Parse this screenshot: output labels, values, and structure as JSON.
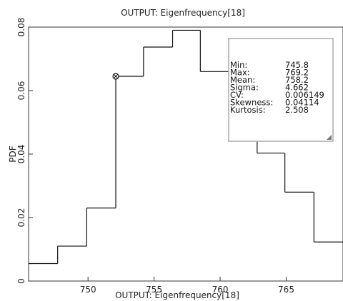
{
  "chart_data": {
    "type": "histogram-step",
    "title": "OUTPUT: Eigenfrequency[18]",
    "xlabel": "OUTPUT: Eigenfrequency[18]",
    "ylabel": "PDF",
    "xlim": [
      745.5,
      769.3
    ],
    "ylim": [
      0,
      0.08
    ],
    "x_ticks": [
      750,
      755,
      760,
      765
    ],
    "y_ticks": [
      0,
      0.02,
      0.04,
      0.06,
      0.08
    ],
    "y_tick_labels": [
      "0",
      "0.02",
      "0.04",
      "0.06",
      "0.08"
    ],
    "grid": false,
    "bins": [
      {
        "x0": 745.5,
        "x1": 747.7,
        "pdf": 0.0055
      },
      {
        "x0": 747.7,
        "x1": 749.9,
        "pdf": 0.011
      },
      {
        "x0": 749.9,
        "x1": 752.1,
        "pdf": 0.023
      },
      {
        "x0": 752.1,
        "x1": 754.2,
        "pdf": 0.0645
      },
      {
        "x0": 754.2,
        "x1": 756.4,
        "pdf": 0.0737
      },
      {
        "x0": 756.4,
        "x1": 758.5,
        "pdf": 0.079
      },
      {
        "x0": 758.5,
        "x1": 760.7,
        "pdf": 0.066
      },
      {
        "x0": 760.7,
        "x1": 762.8,
        "pdf": 0.067
      },
      {
        "x0": 762.8,
        "x1": 764.9,
        "pdf": 0.0403
      },
      {
        "x0": 764.9,
        "x1": 767.1,
        "pdf": 0.028
      },
      {
        "x0": 767.1,
        "x1": 769.3,
        "pdf": 0.0123
      }
    ],
    "marker": {
      "x": 752.1,
      "y": 0.0645
    },
    "stats_box": {
      "position": "top-right",
      "rows": [
        {
          "label": "Min:",
          "value": "745.8"
        },
        {
          "label": "Max:",
          "value": "769.2"
        },
        {
          "label": "Mean:",
          "value": "758.2"
        },
        {
          "label": "Sigma:",
          "value": "4.662"
        },
        {
          "label": "CV:",
          "value": "0.006149"
        },
        {
          "label": "Skewness:",
          "value": "0.04114"
        },
        {
          "label": "Kurtosis:",
          "value": "2.508"
        }
      ]
    },
    "colors": {
      "line": "#111111",
      "axis": "#333333",
      "box_border": "#aaaaaa",
      "background": "#ffffff"
    }
  }
}
